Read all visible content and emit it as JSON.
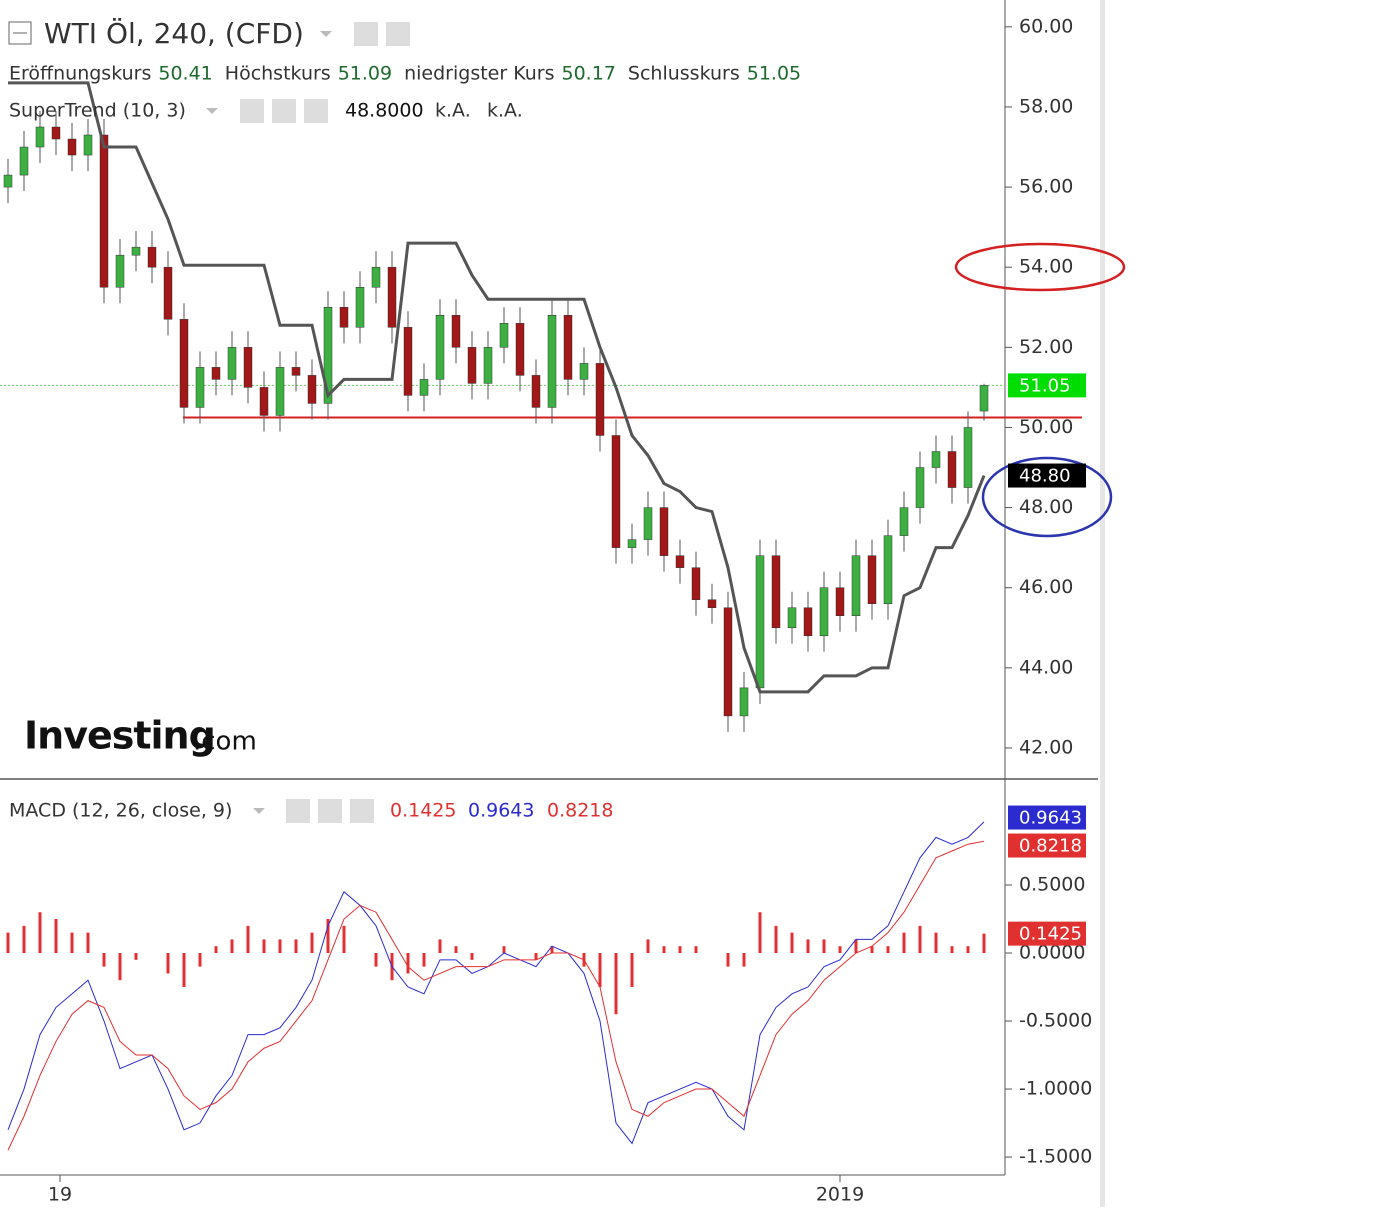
{
  "chart_data": [
    {
      "type": "candlestick",
      "title": "WTI Öl, 240, (CFD)",
      "ohlc_labels": [
        "Eröffnungskurs",
        "Höchstkurs",
        "niedrigster Kurs",
        "Schlusskurs"
      ],
      "up_color": "#3cb043",
      "down_color": "#a01818",
      "open": [
        56.0,
        56.3,
        57.0,
        57.5,
        57.2,
        56.8,
        57.3,
        53.5,
        54.3,
        54.5,
        54.0,
        52.7,
        50.5,
        51.5,
        51.2,
        52.0,
        51.0,
        50.3,
        51.5,
        51.3,
        50.6,
        53.0,
        52.5,
        53.5,
        54.0,
        52.5,
        50.8,
        51.2,
        52.8,
        52.0,
        51.1,
        52.0,
        52.6,
        51.3,
        50.5,
        52.8,
        51.2,
        51.6,
        49.8,
        47.0,
        47.2,
        48.0,
        46.8,
        46.5,
        45.7,
        45.5,
        42.8,
        43.5,
        46.8,
        45.0,
        45.5,
        44.8,
        46.0,
        45.3,
        46.8,
        45.6,
        47.3,
        48.0,
        49.0,
        49.4,
        48.5,
        50.41
      ],
      "high": [
        56.7,
        57.4,
        57.9,
        57.9,
        57.6,
        57.7,
        57.7,
        54.7,
        54.9,
        54.9,
        54.4,
        53.1,
        51.9,
        51.9,
        52.4,
        52.4,
        51.4,
        51.9,
        51.9,
        51.7,
        53.4,
        53.4,
        53.9,
        54.4,
        54.4,
        52.9,
        51.6,
        53.2,
        53.2,
        52.4,
        52.4,
        53.0,
        53.0,
        51.7,
        53.2,
        53.2,
        52.0,
        52.0,
        50.2,
        47.6,
        48.4,
        48.4,
        47.2,
        46.9,
        46.1,
        45.9,
        43.9,
        47.2,
        47.2,
        45.9,
        45.9,
        46.4,
        46.4,
        47.2,
        47.2,
        47.7,
        48.4,
        49.4,
        49.8,
        49.8,
        50.4,
        51.09
      ],
      "low": [
        55.6,
        55.9,
        56.6,
        56.8,
        56.4,
        56.4,
        53.1,
        53.1,
        53.9,
        53.6,
        52.3,
        50.1,
        50.1,
        50.8,
        50.8,
        50.6,
        49.9,
        49.9,
        50.9,
        50.2,
        50.2,
        52.1,
        52.1,
        53.1,
        52.1,
        50.4,
        50.4,
        50.8,
        51.6,
        50.7,
        50.7,
        51.6,
        50.9,
        50.1,
        50.1,
        50.8,
        50.8,
        49.4,
        46.6,
        46.6,
        46.8,
        46.4,
        46.1,
        45.3,
        45.1,
        42.4,
        42.4,
        43.1,
        44.6,
        44.6,
        44.4,
        44.4,
        44.9,
        44.9,
        45.2,
        45.2,
        46.9,
        47.6,
        48.6,
        48.1,
        48.1,
        50.17
      ],
      "close": [
        56.3,
        57.0,
        57.5,
        57.2,
        56.8,
        57.3,
        53.5,
        54.3,
        54.5,
        54.0,
        52.7,
        50.5,
        51.5,
        51.2,
        52.0,
        51.0,
        50.3,
        51.5,
        51.3,
        50.6,
        53.0,
        52.5,
        53.5,
        54.0,
        52.5,
        50.8,
        51.2,
        52.8,
        52.0,
        51.1,
        52.0,
        52.6,
        51.3,
        50.5,
        52.8,
        51.2,
        51.6,
        49.8,
        47.0,
        47.2,
        48.0,
        46.8,
        46.5,
        45.7,
        45.5,
        42.8,
        43.5,
        46.8,
        45.0,
        45.5,
        44.8,
        46.0,
        45.3,
        46.8,
        45.6,
        47.3,
        48.0,
        49.0,
        49.4,
        48.5,
        50.0,
        51.05
      ],
      "series": [
        {
          "name": "SuperTrend (10, 3)",
          "color": "#555555",
          "status_label": "48.8000",
          "tag_label": "48.80",
          "na_labels": [
            "k.A.",
            "k.A."
          ],
          "values": [
            58.6,
            58.6,
            58.6,
            58.6,
            58.6,
            58.6,
            57.0,
            57.0,
            57.0,
            56.1,
            55.2,
            54.05,
            54.05,
            54.05,
            54.05,
            54.05,
            54.05,
            52.55,
            52.55,
            52.55,
            50.8,
            51.2,
            51.2,
            51.2,
            51.2,
            54.6,
            54.6,
            54.6,
            54.6,
            53.8,
            53.2,
            53.2,
            53.2,
            53.2,
            53.2,
            53.2,
            53.2,
            52.0,
            51.0,
            49.8,
            49.3,
            48.6,
            48.4,
            48.0,
            47.9,
            46.5,
            44.5,
            43.4,
            43.4,
            43.4,
            43.4,
            43.8,
            43.8,
            43.8,
            44.0,
            44.0,
            45.8,
            46.0,
            47.0,
            47.0,
            47.8,
            48.8
          ]
        }
      ],
      "hline": 50.25,
      "hline_color": "#d42020",
      "watermark": [
        "Investing",
        ".com"
      ],
      "ylim": [
        41.25,
        60.67
      ],
      "yticks": [
        {
          "value": 42,
          "label": "42.00"
        },
        {
          "value": 44,
          "label": "44.00"
        },
        {
          "value": 46,
          "label": "46.00"
        },
        {
          "value": 48,
          "label": "48.00"
        },
        {
          "value": 50,
          "label": "50.00"
        },
        {
          "value": 52,
          "label": "52.00"
        },
        {
          "value": 54,
          "label": "54.00"
        },
        {
          "value": 56,
          "label": "56.00"
        },
        {
          "value": 58,
          "label": "58.00"
        },
        {
          "value": 60,
          "label": "60.00"
        }
      ]
    },
    {
      "type": "macd",
      "title": "MACD (12, 26, close, 9)",
      "series": [
        {
          "name": "histogram",
          "color": "#e03030",
          "values": [
            0.15,
            0.2,
            0.3,
            0.25,
            0.15,
            0.15,
            -0.1,
            -0.2,
            -0.05,
            0.0,
            -0.15,
            -0.25,
            -0.1,
            0.05,
            0.1,
            0.2,
            0.1,
            0.1,
            0.1,
            0.15,
            0.25,
            0.2,
            0.0,
            -0.1,
            -0.2,
            -0.15,
            -0.1,
            0.1,
            0.05,
            -0.05,
            0.0,
            0.05,
            0.0,
            -0.05,
            0.05,
            0.0,
            -0.1,
            -0.25,
            -0.45,
            -0.25,
            0.1,
            0.05,
            0.05,
            0.05,
            0.0,
            -0.1,
            -0.1,
            0.3,
            0.2,
            0.15,
            0.1,
            0.1,
            0.05,
            0.1,
            0.05,
            0.05,
            0.15,
            0.2,
            0.15,
            0.05,
            0.05,
            0.1425
          ]
        },
        {
          "name": "macd",
          "color": "#2b2bd0",
          "values": [
            -1.3,
            -1.0,
            -0.6,
            -0.4,
            -0.3,
            -0.2,
            -0.5,
            -0.85,
            -0.8,
            -0.75,
            -1.0,
            -1.3,
            -1.25,
            -1.05,
            -0.9,
            -0.6,
            -0.6,
            -0.55,
            -0.4,
            -0.2,
            0.2,
            0.45,
            0.35,
            0.2,
            -0.1,
            -0.25,
            -0.3,
            -0.05,
            -0.05,
            -0.15,
            -0.1,
            0.0,
            -0.05,
            -0.1,
            0.05,
            0.0,
            -0.15,
            -0.5,
            -1.25,
            -1.4,
            -1.1,
            -1.05,
            -1.0,
            -0.95,
            -1.0,
            -1.2,
            -1.3,
            -0.6,
            -0.4,
            -0.3,
            -0.25,
            -0.1,
            -0.05,
            0.1,
            0.1,
            0.2,
            0.45,
            0.7,
            0.85,
            0.8,
            0.85,
            0.9643
          ]
        },
        {
          "name": "signal",
          "color": "#e03030",
          "values": [
            -1.45,
            -1.2,
            -0.9,
            -0.65,
            -0.45,
            -0.35,
            -0.4,
            -0.65,
            -0.75,
            -0.75,
            -0.85,
            -1.05,
            -1.15,
            -1.1,
            -1.0,
            -0.8,
            -0.7,
            -0.65,
            -0.5,
            -0.35,
            -0.05,
            0.25,
            0.35,
            0.3,
            0.1,
            -0.1,
            -0.2,
            -0.15,
            -0.1,
            -0.1,
            -0.1,
            -0.05,
            -0.05,
            -0.05,
            0.0,
            0.0,
            -0.05,
            -0.25,
            -0.8,
            -1.15,
            -1.2,
            -1.1,
            -1.05,
            -1.0,
            -1.0,
            -1.1,
            -1.2,
            -0.9,
            -0.6,
            -0.45,
            -0.35,
            -0.2,
            -0.1,
            0.0,
            0.05,
            0.15,
            0.3,
            0.5,
            0.7,
            0.75,
            0.8,
            0.8218
          ]
        }
      ],
      "ylim": [
        -1.632,
        1.272
      ],
      "yticks": [
        {
          "value": 0.5,
          "label": "0.5000"
        },
        {
          "value": 0,
          "label": "0.0000"
        },
        {
          "value": -0.5,
          "label": "-0.5000"
        },
        {
          "value": -1,
          "label": "-1.0000"
        },
        {
          "value": -1.5,
          "label": "-1.5000"
        }
      ],
      "xticks": [
        {
          "value": 3.25,
          "label": "19"
        },
        {
          "value": 52,
          "label": "2019"
        }
      ]
    }
  ]
}
